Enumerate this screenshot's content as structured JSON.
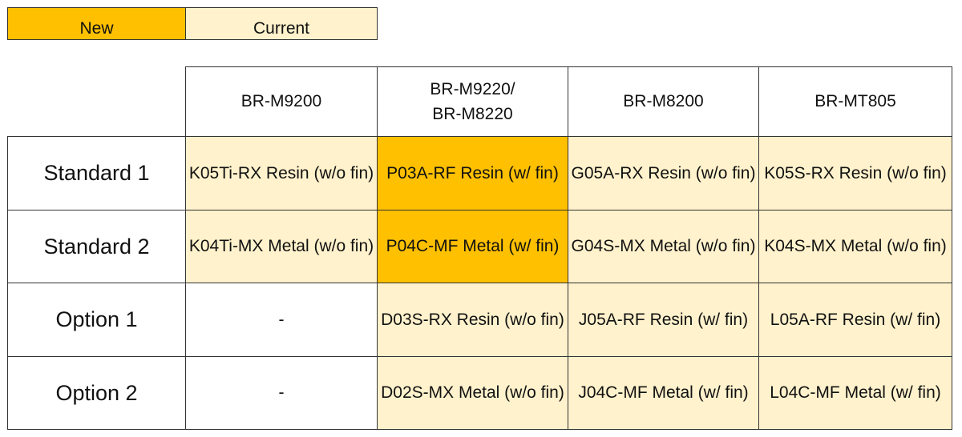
{
  "legend": {
    "new_label": "New",
    "current_label": "Current"
  },
  "colors": {
    "new": "#FFC000",
    "current": "#FFF2CC"
  },
  "table": {
    "columns": [
      "BR-M9200",
      "BR-M9220/\nBR-M8220",
      "BR-M8200",
      "BR-MT805"
    ],
    "rows": [
      {
        "label": "Standard 1",
        "cells": [
          {
            "text": "K05Ti-RX Resin (w/o fin)",
            "status": "cur"
          },
          {
            "text": "P03A-RF Resin (w/ fin)",
            "status": "new"
          },
          {
            "text": "G05A-RX Resin (w/o fin)",
            "status": "cur"
          },
          {
            "text": "K05S-RX Resin (w/o fin)",
            "status": "cur"
          }
        ]
      },
      {
        "label": "Standard 2",
        "cells": [
          {
            "text": "K04Ti-MX Metal (w/o fin)",
            "status": "cur"
          },
          {
            "text": "P04C-MF Metal (w/ fin)",
            "status": "new"
          },
          {
            "text": "G04S-MX Metal (w/o fin)",
            "status": "cur"
          },
          {
            "text": "K04S-MX Metal (w/o fin)",
            "status": "cur"
          }
        ]
      },
      {
        "label": "Option 1",
        "cells": [
          {
            "text": "-",
            "status": "none"
          },
          {
            "text": "D03S-RX Resin (w/o fin)",
            "status": "cur"
          },
          {
            "text": "J05A-RF Resin (w/ fin)",
            "status": "cur"
          },
          {
            "text": "L05A-RF Resin (w/ fin)",
            "status": "cur"
          }
        ]
      },
      {
        "label": "Option 2",
        "cells": [
          {
            "text": "-",
            "status": "none"
          },
          {
            "text": "D02S-MX Metal (w/o fin)",
            "status": "cur"
          },
          {
            "text": "J04C-MF Metal (w/ fin)",
            "status": "cur"
          },
          {
            "text": "L04C-MF Metal (w/ fin)",
            "status": "cur"
          }
        ]
      }
    ]
  }
}
